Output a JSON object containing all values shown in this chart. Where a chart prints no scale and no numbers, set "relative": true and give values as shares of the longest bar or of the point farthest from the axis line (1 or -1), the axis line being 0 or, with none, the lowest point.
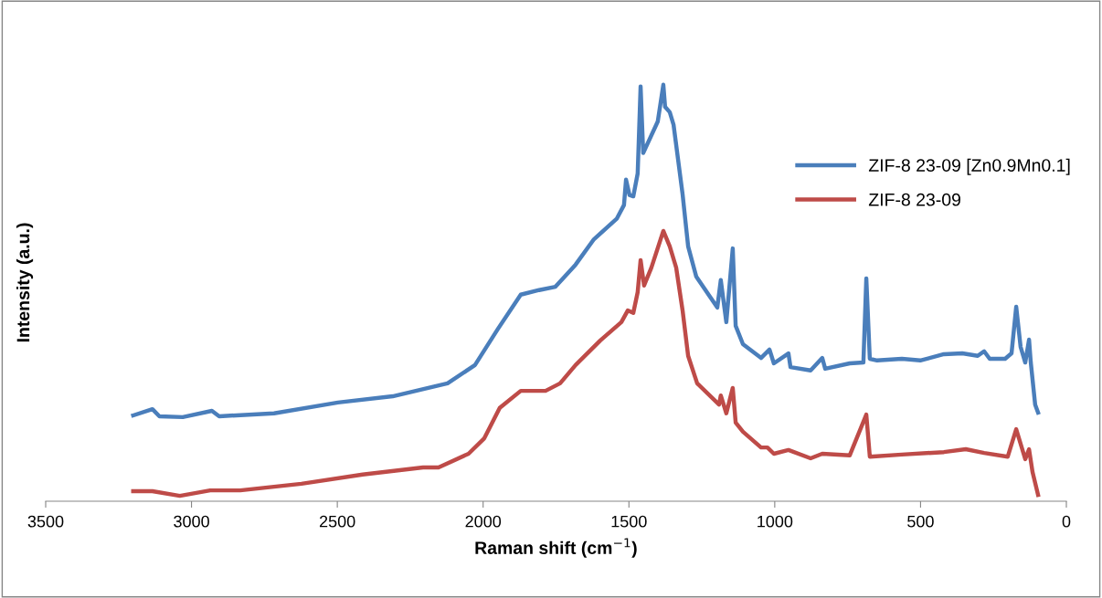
{
  "chart_data": {
    "type": "line",
    "relative": true,
    "xlabel": "Raman shift (cm$^{−1}$)",
    "ylabel": "Intensity (a.u.)",
    "xlim": [
      3500,
      0
    ],
    "xticks": [
      3500,
      3000,
      2500,
      2000,
      1500,
      1000,
      500,
      0
    ],
    "grid": false,
    "legend": "upper right",
    "marker": "none",
    "line_style": "solid",
    "series": [
      {
        "name": "ZIF-8 23-09 [Zn0.9Mn0.1]",
        "color": "#4a7ebb",
        "x": [
          3200,
          3134,
          3110,
          3030,
          2930,
          2905,
          2717,
          2498,
          2310,
          2122,
          2028,
          1949,
          1871,
          1808,
          1752,
          1683,
          1620,
          1542,
          1517,
          1510,
          1498,
          1485,
          1470,
          1460,
          1451,
          1401,
          1382,
          1376,
          1360,
          1347,
          1316,
          1297,
          1269,
          1197,
          1185,
          1166,
          1144,
          1134,
          1109,
          1047,
          1018,
          1003,
          953,
          946,
          877,
          837,
          827,
          743,
          696,
          686,
          674,
          649,
          564,
          501,
          420,
          357,
          304,
          282,
          263,
          210,
          188,
          172,
          157,
          141,
          128,
          122,
          107,
          97
        ],
        "values": [
          0.206,
          0.221,
          0.204,
          0.202,
          0.217,
          0.204,
          0.211,
          0.237,
          0.252,
          0.283,
          0.327,
          0.414,
          0.496,
          0.507,
          0.515,
          0.568,
          0.629,
          0.678,
          0.711,
          0.772,
          0.735,
          0.732,
          0.787,
          0.996,
          0.836,
          0.912,
          1.0,
          0.947,
          0.934,
          0.904,
          0.737,
          0.612,
          0.539,
          0.465,
          0.531,
          0.43,
          0.607,
          0.421,
          0.377,
          0.344,
          0.364,
          0.331,
          0.355,
          0.322,
          0.314,
          0.344,
          0.318,
          0.331,
          0.333,
          0.535,
          0.342,
          0.338,
          0.342,
          0.338,
          0.353,
          0.355,
          0.349,
          0.36,
          0.342,
          0.342,
          0.355,
          0.467,
          0.371,
          0.333,
          0.388,
          0.333,
          0.232,
          0.213
        ]
      },
      {
        "name": "ZIF-8 23-09",
        "color": "#be4b48",
        "x": [
          3200,
          3134,
          3040,
          2936,
          2833,
          2623,
          2413,
          2206,
          2153,
          2050,
          1996,
          1943,
          1871,
          1786,
          1736,
          1683,
          1598,
          1526,
          1504,
          1485,
          1470,
          1460,
          1448,
          1423,
          1382,
          1360,
          1338,
          1316,
          1297,
          1266,
          1191,
          1185,
          1166,
          1144,
          1134,
          1109,
          1047,
          1025,
          1003,
          953,
          877,
          837,
          743,
          686,
          674,
          564,
          420,
          345,
          282,
          201,
          172,
          141,
          128,
          116,
          97
        ],
        "values": [
          0.024,
          0.024,
          0.013,
          0.026,
          0.026,
          0.042,
          0.064,
          0.081,
          0.081,
          0.114,
          0.151,
          0.224,
          0.265,
          0.265,
          0.283,
          0.327,
          0.386,
          0.43,
          0.458,
          0.452,
          0.502,
          0.579,
          0.518,
          0.561,
          0.649,
          0.612,
          0.561,
          0.458,
          0.349,
          0.283,
          0.232,
          0.254,
          0.211,
          0.272,
          0.189,
          0.167,
          0.129,
          0.129,
          0.114,
          0.123,
          0.103,
          0.114,
          0.11,
          0.208,
          0.107,
          0.112,
          0.118,
          0.125,
          0.116,
          0.107,
          0.173,
          0.101,
          0.125,
          0.07,
          0.015
        ]
      }
    ]
  }
}
